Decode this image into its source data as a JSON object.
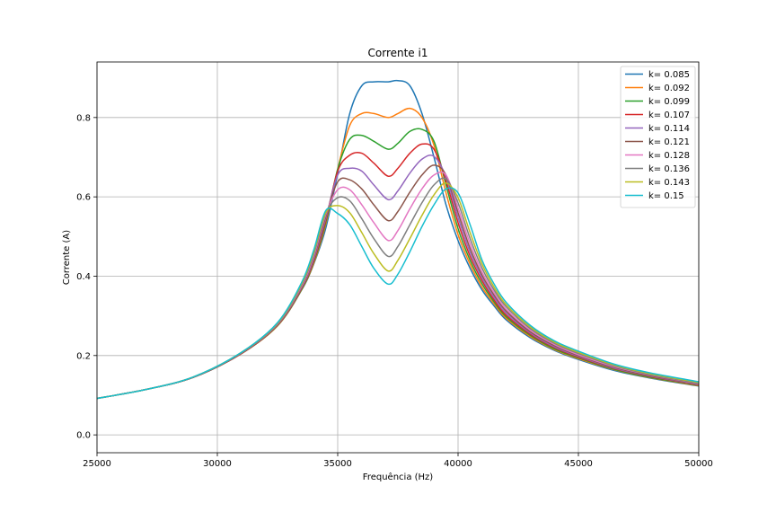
{
  "chart_data": {
    "type": "line",
    "title": "Corrente i1",
    "xlabel": "Frequência (Hz)",
    "ylabel": "Corrente (A)",
    "xlim": [
      25000,
      50000
    ],
    "ylim": [
      -0.045,
      0.94
    ],
    "x_ticks": [
      25000,
      30000,
      35000,
      40000,
      45000,
      50000
    ],
    "y_ticks": [
      0.0,
      0.2,
      0.4,
      0.6,
      0.8
    ],
    "y_tick_labels": [
      "0.0",
      "0.2",
      "0.4",
      "0.6",
      "0.8"
    ],
    "grid": true,
    "legend_position": "top-right",
    "x": [
      25000,
      27000,
      29000,
      31000,
      32500,
      33500,
      34000,
      34500,
      35000,
      35500,
      36000,
      36500,
      37100,
      37500,
      38000,
      38500,
      39000,
      39500,
      40000,
      40500,
      41000,
      41500,
      42000,
      43000,
      44000,
      45000,
      46500,
      48000,
      50000
    ],
    "series": [
      {
        "name": "k= 0.085",
        "color": "#1f77b4",
        "values": [
          0.092,
          0.114,
          0.145,
          0.205,
          0.275,
          0.365,
          0.43,
          0.52,
          0.66,
          0.81,
          0.88,
          0.89,
          0.89,
          0.893,
          0.88,
          0.81,
          0.7,
          0.58,
          0.49,
          0.42,
          0.365,
          0.325,
          0.29,
          0.245,
          0.213,
          0.19,
          0.162,
          0.143,
          0.123
        ]
      },
      {
        "name": "k= 0.092",
        "color": "#ff7f0e",
        "values": [
          0.092,
          0.114,
          0.145,
          0.205,
          0.275,
          0.366,
          0.432,
          0.53,
          0.67,
          0.78,
          0.81,
          0.81,
          0.8,
          0.81,
          0.823,
          0.8,
          0.73,
          0.61,
          0.505,
          0.43,
          0.372,
          0.33,
          0.294,
          0.248,
          0.215,
          0.192,
          0.164,
          0.144,
          0.124
        ]
      },
      {
        "name": "k= 0.099",
        "color": "#2ca02c",
        "values": [
          0.092,
          0.114,
          0.145,
          0.205,
          0.276,
          0.367,
          0.435,
          0.535,
          0.67,
          0.745,
          0.755,
          0.74,
          0.72,
          0.735,
          0.765,
          0.77,
          0.74,
          0.63,
          0.52,
          0.44,
          0.38,
          0.335,
          0.298,
          0.251,
          0.217,
          0.194,
          0.165,
          0.145,
          0.125
        ]
      },
      {
        "name": "k= 0.107",
        "color": "#d62728",
        "values": [
          0.092,
          0.114,
          0.145,
          0.205,
          0.277,
          0.369,
          0.438,
          0.54,
          0.665,
          0.705,
          0.71,
          0.685,
          0.652,
          0.672,
          0.71,
          0.733,
          0.72,
          0.64,
          0.535,
          0.45,
          0.388,
          0.34,
          0.302,
          0.254,
          0.22,
          0.196,
          0.167,
          0.147,
          0.126
        ]
      },
      {
        "name": "k= 0.114",
        "color": "#9467bd",
        "values": [
          0.092,
          0.114,
          0.145,
          0.206,
          0.278,
          0.371,
          0.442,
          0.545,
          0.655,
          0.672,
          0.665,
          0.63,
          0.593,
          0.615,
          0.66,
          0.695,
          0.702,
          0.65,
          0.548,
          0.46,
          0.395,
          0.346,
          0.307,
          0.257,
          0.222,
          0.198,
          0.168,
          0.148,
          0.127
        ]
      },
      {
        "name": "k= 0.121",
        "color": "#8c564b",
        "values": [
          0.092,
          0.114,
          0.145,
          0.206,
          0.279,
          0.373,
          0.446,
          0.55,
          0.638,
          0.643,
          0.62,
          0.58,
          0.54,
          0.563,
          0.612,
          0.655,
          0.68,
          0.655,
          0.56,
          0.47,
          0.402,
          0.352,
          0.312,
          0.26,
          0.225,
          0.2,
          0.17,
          0.149,
          0.128
        ]
      },
      {
        "name": "k= 0.128",
        "color": "#e377c2",
        "values": [
          0.092,
          0.114,
          0.146,
          0.207,
          0.28,
          0.375,
          0.45,
          0.555,
          0.618,
          0.618,
          0.58,
          0.535,
          0.49,
          0.515,
          0.57,
          0.62,
          0.655,
          0.655,
          0.572,
          0.482,
          0.41,
          0.358,
          0.317,
          0.264,
          0.228,
          0.202,
          0.172,
          0.151,
          0.129
        ]
      },
      {
        "name": "k= 0.136",
        "color": "#7f7f7f",
        "values": [
          0.092,
          0.114,
          0.146,
          0.207,
          0.281,
          0.378,
          0.455,
          0.558,
          0.598,
          0.59,
          0.545,
          0.495,
          0.45,
          0.475,
          0.53,
          0.585,
          0.63,
          0.645,
          0.585,
          0.495,
          0.42,
          0.365,
          0.323,
          0.268,
          0.231,
          0.205,
          0.174,
          0.152,
          0.13
        ]
      },
      {
        "name": "k= 0.143",
        "color": "#bcbd22",
        "values": [
          0.092,
          0.114,
          0.146,
          0.208,
          0.282,
          0.381,
          0.46,
          0.56,
          0.578,
          0.56,
          0.51,
          0.457,
          0.413,
          0.44,
          0.495,
          0.553,
          0.605,
          0.635,
          0.598,
          0.51,
          0.43,
          0.372,
          0.328,
          0.272,
          0.234,
          0.208,
          0.176,
          0.154,
          0.132
        ]
      },
      {
        "name": "k= 0.15",
        "color": "#17becf",
        "values": [
          0.092,
          0.114,
          0.146,
          0.208,
          0.283,
          0.384,
          0.465,
          0.565,
          0.558,
          0.53,
          0.475,
          0.42,
          0.38,
          0.405,
          0.462,
          0.525,
          0.58,
          0.62,
          0.61,
          0.53,
          0.44,
          0.38,
          0.334,
          0.276,
          0.237,
          0.211,
          0.178,
          0.156,
          0.134
        ]
      }
    ]
  }
}
